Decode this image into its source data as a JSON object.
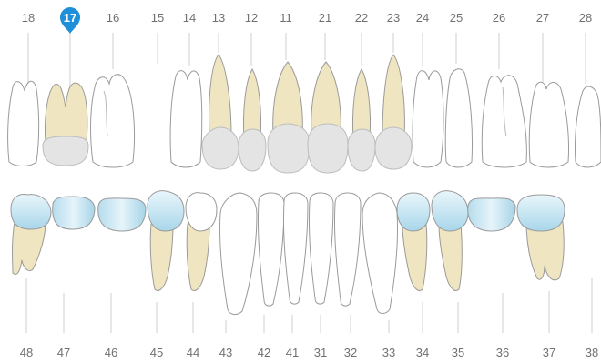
{
  "upper_numbers": [
    "18",
    "17",
    "16",
    "15",
    "14",
    "13",
    "12",
    "11",
    "21",
    "22",
    "23",
    "24",
    "25",
    "26",
    "27",
    "28"
  ],
  "lower_numbers": [
    "48",
    "47",
    "46",
    "45",
    "44",
    "43",
    "42",
    "41",
    "31",
    "32",
    "33",
    "34",
    "35",
    "36",
    "37",
    "38"
  ],
  "selected": "17",
  "colors": {
    "selected_marker": "#1e8fd8",
    "root_fill": "#efe6c1",
    "crown_fill": "#e4e4e4",
    "treated_crown": "#cde7f3",
    "outline": "#9a9a9a",
    "ticks": "#cfcfcf",
    "numbers": "#707070"
  }
}
